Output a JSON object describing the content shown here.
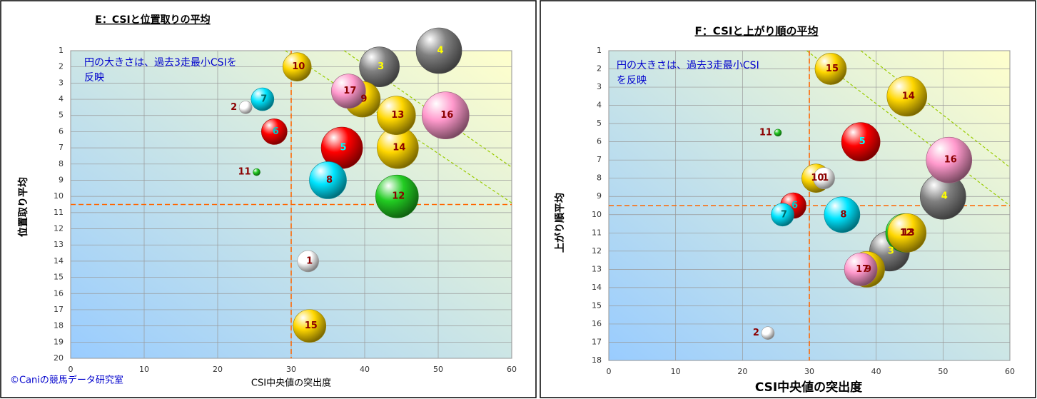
{
  "chart_data": [
    {
      "type": "bubble",
      "title": "E：CSIと位置取りの平均",
      "xlabel": "CSI中央値の突出度",
      "ylabel": "位置取り平均",
      "annotation": [
        "円の大きさは、過去3走最小CSIを",
        "反映"
      ],
      "footer": "©Caniの競馬データ研究室",
      "xlim": [
        0,
        60
      ],
      "xticks": [
        0,
        10,
        20,
        30,
        40,
        50,
        60
      ],
      "ylim": [
        1,
        20
      ],
      "y_inverted": true,
      "yticks": [
        1,
        2,
        3,
        4,
        5,
        6,
        7,
        8,
        9,
        10,
        11,
        12,
        13,
        14,
        15,
        16,
        17,
        18,
        19,
        20
      ],
      "grid": true,
      "ref_x": 30,
      "ref_y": 10.5,
      "trend_lines": [
        [
          37.2,
          1,
          60,
          8.2
        ],
        [
          29.2,
          1,
          60,
          10.4
        ]
      ],
      "series": [
        {
          "name": "1",
          "color": "#ffffff",
          "label_color": "#8b0000",
          "x": 32.3,
          "value": 14,
          "size": 15
        },
        {
          "name": "2",
          "color": "#ffffff",
          "label_color": "#8b0000",
          "x": 23.8,
          "value": 4.5,
          "size": 9
        },
        {
          "name": "3",
          "color": "#808080",
          "label_color": "#ffff00",
          "x": 42,
          "value": 2,
          "size": 28
        },
        {
          "name": "4",
          "color": "#808080",
          "label_color": "#ffff00",
          "x": 50.1,
          "value": 1,
          "size": 32
        },
        {
          "name": "5",
          "color": "#ff0000",
          "label_color": "#00ffff",
          "x": 36.9,
          "value": 7,
          "size": 29
        },
        {
          "name": "6",
          "color": "#ff0000",
          "label_color": "#00cccc",
          "x": 27.7,
          "value": 6,
          "size": 18
        },
        {
          "name": "7",
          "color": "#00e5ff",
          "label_color": "#006666",
          "x": 26.1,
          "value": 4,
          "size": 16
        },
        {
          "name": "8",
          "color": "#00e5ff",
          "label_color": "#8b0000",
          "x": 35,
          "value": 9,
          "size": 26
        },
        {
          "name": "9",
          "color": "#ffd700",
          "label_color": "#8b0000",
          "x": 39.7,
          "value": 4,
          "size": 25
        },
        {
          "name": "10",
          "color": "#ffd700",
          "label_color": "#8b0000",
          "x": 30.8,
          "value": 2,
          "size": 20
        },
        {
          "name": "11",
          "color": "#22cc22",
          "label_color": "#8b0000",
          "x": 25.3,
          "value": 8.5,
          "size": 5
        },
        {
          "name": "12",
          "color": "#22cc22",
          "label_color": "#8b0000",
          "x": 44.4,
          "value": 10,
          "size": 30
        },
        {
          "name": "13",
          "color": "#ffd700",
          "label_color": "#8b0000",
          "x": 44.3,
          "value": 5,
          "size": 27
        },
        {
          "name": "14",
          "color": "#ffd700",
          "label_color": "#8b0000",
          "x": 44.5,
          "value": 7,
          "size": 29
        },
        {
          "name": "15",
          "color": "#ffd700",
          "label_color": "#8b0000",
          "x": 32.5,
          "value": 18,
          "size": 23
        },
        {
          "name": "16",
          "color": "#ff99cc",
          "label_color": "#8b0000",
          "x": 51,
          "value": 5,
          "size": 33
        },
        {
          "name": "17",
          "color": "#ff99cc",
          "label_color": "#8b0000",
          "x": 37.8,
          "value": 3.5,
          "size": 24
        }
      ]
    },
    {
      "type": "bubble",
      "title": "F：CSIと上がり順の平均",
      "xlabel": "CSI中央値の突出度",
      "ylabel": "上がり順平均",
      "annotation": [
        "円の大きさは、過去3走最小CSI",
        "を反映"
      ],
      "xlim": [
        0,
        60
      ],
      "xticks": [
        0,
        10,
        20,
        30,
        40,
        50,
        60
      ],
      "ylim": [
        1,
        18
      ],
      "y_inverted": true,
      "yticks": [
        1,
        2,
        3,
        4,
        5,
        6,
        7,
        8,
        9,
        10,
        11,
        12,
        13,
        14,
        15,
        16,
        17,
        18
      ],
      "grid": true,
      "ref_x": 30,
      "ref_y": 9.5,
      "trend_lines": [
        [
          37.7,
          1,
          60,
          7.4
        ],
        [
          29.6,
          1,
          60,
          9.5
        ]
      ],
      "series": [
        {
          "name": "1",
          "color": "#ffffff",
          "label_color": "#8b0000",
          "x": 32.2,
          "value": 8,
          "size": 15
        },
        {
          "name": "2",
          "color": "#ffffff",
          "label_color": "#8b0000",
          "x": 23.8,
          "value": 16.5,
          "size": 9
        },
        {
          "name": "3",
          "color": "#808080",
          "label_color": "#ffff00",
          "x": 42,
          "value": 12,
          "size": 28
        },
        {
          "name": "4",
          "color": "#808080",
          "label_color": "#ffff00",
          "x": 50,
          "value": 9,
          "size": 32
        },
        {
          "name": "5",
          "color": "#ff0000",
          "label_color": "#00ffff",
          "x": 37.7,
          "value": 6,
          "size": 27
        },
        {
          "name": "6",
          "color": "#ff0000",
          "label_color": "#00cccc",
          "x": 27.6,
          "value": 9.5,
          "size": 18
        },
        {
          "name": "7",
          "color": "#00e5ff",
          "label_color": "#006666",
          "x": 26,
          "value": 10,
          "size": 16
        },
        {
          "name": "8",
          "color": "#00e5ff",
          "label_color": "#8b0000",
          "x": 34.9,
          "value": 10,
          "size": 25
        },
        {
          "name": "9",
          "color": "#ffd700",
          "label_color": "#8b0000",
          "x": 38.6,
          "value": 13,
          "size": 25
        },
        {
          "name": "10",
          "color": "#ffd700",
          "label_color": "#8b0000",
          "x": 31,
          "value": 8,
          "size": 20
        },
        {
          "name": "11",
          "color": "#22cc22",
          "label_color": "#8b0000",
          "x": 25.3,
          "value": 5.5,
          "size": 5
        },
        {
          "name": "12",
          "color": "#22cc22",
          "label_color": "#8b0000",
          "x": 44.3,
          "value": 11,
          "size": 27
        },
        {
          "name": "13",
          "color": "#ffd700",
          "label_color": "#8b0000",
          "x": 44.6,
          "value": 11,
          "size": 27
        },
        {
          "name": "14",
          "color": "#ffd700",
          "label_color": "#8b0000",
          "x": 44.6,
          "value": 3.5,
          "size": 28
        },
        {
          "name": "15",
          "color": "#ffd700",
          "label_color": "#8b0000",
          "x": 33.2,
          "value": 2,
          "size": 22
        },
        {
          "name": "16",
          "color": "#ff99cc",
          "label_color": "#8b0000",
          "x": 50.9,
          "value": 7,
          "size": 32
        },
        {
          "name": "17",
          "color": "#ff99cc",
          "label_color": "#8b0000",
          "x": 37.7,
          "value": 13,
          "size": 23
        }
      ]
    }
  ]
}
